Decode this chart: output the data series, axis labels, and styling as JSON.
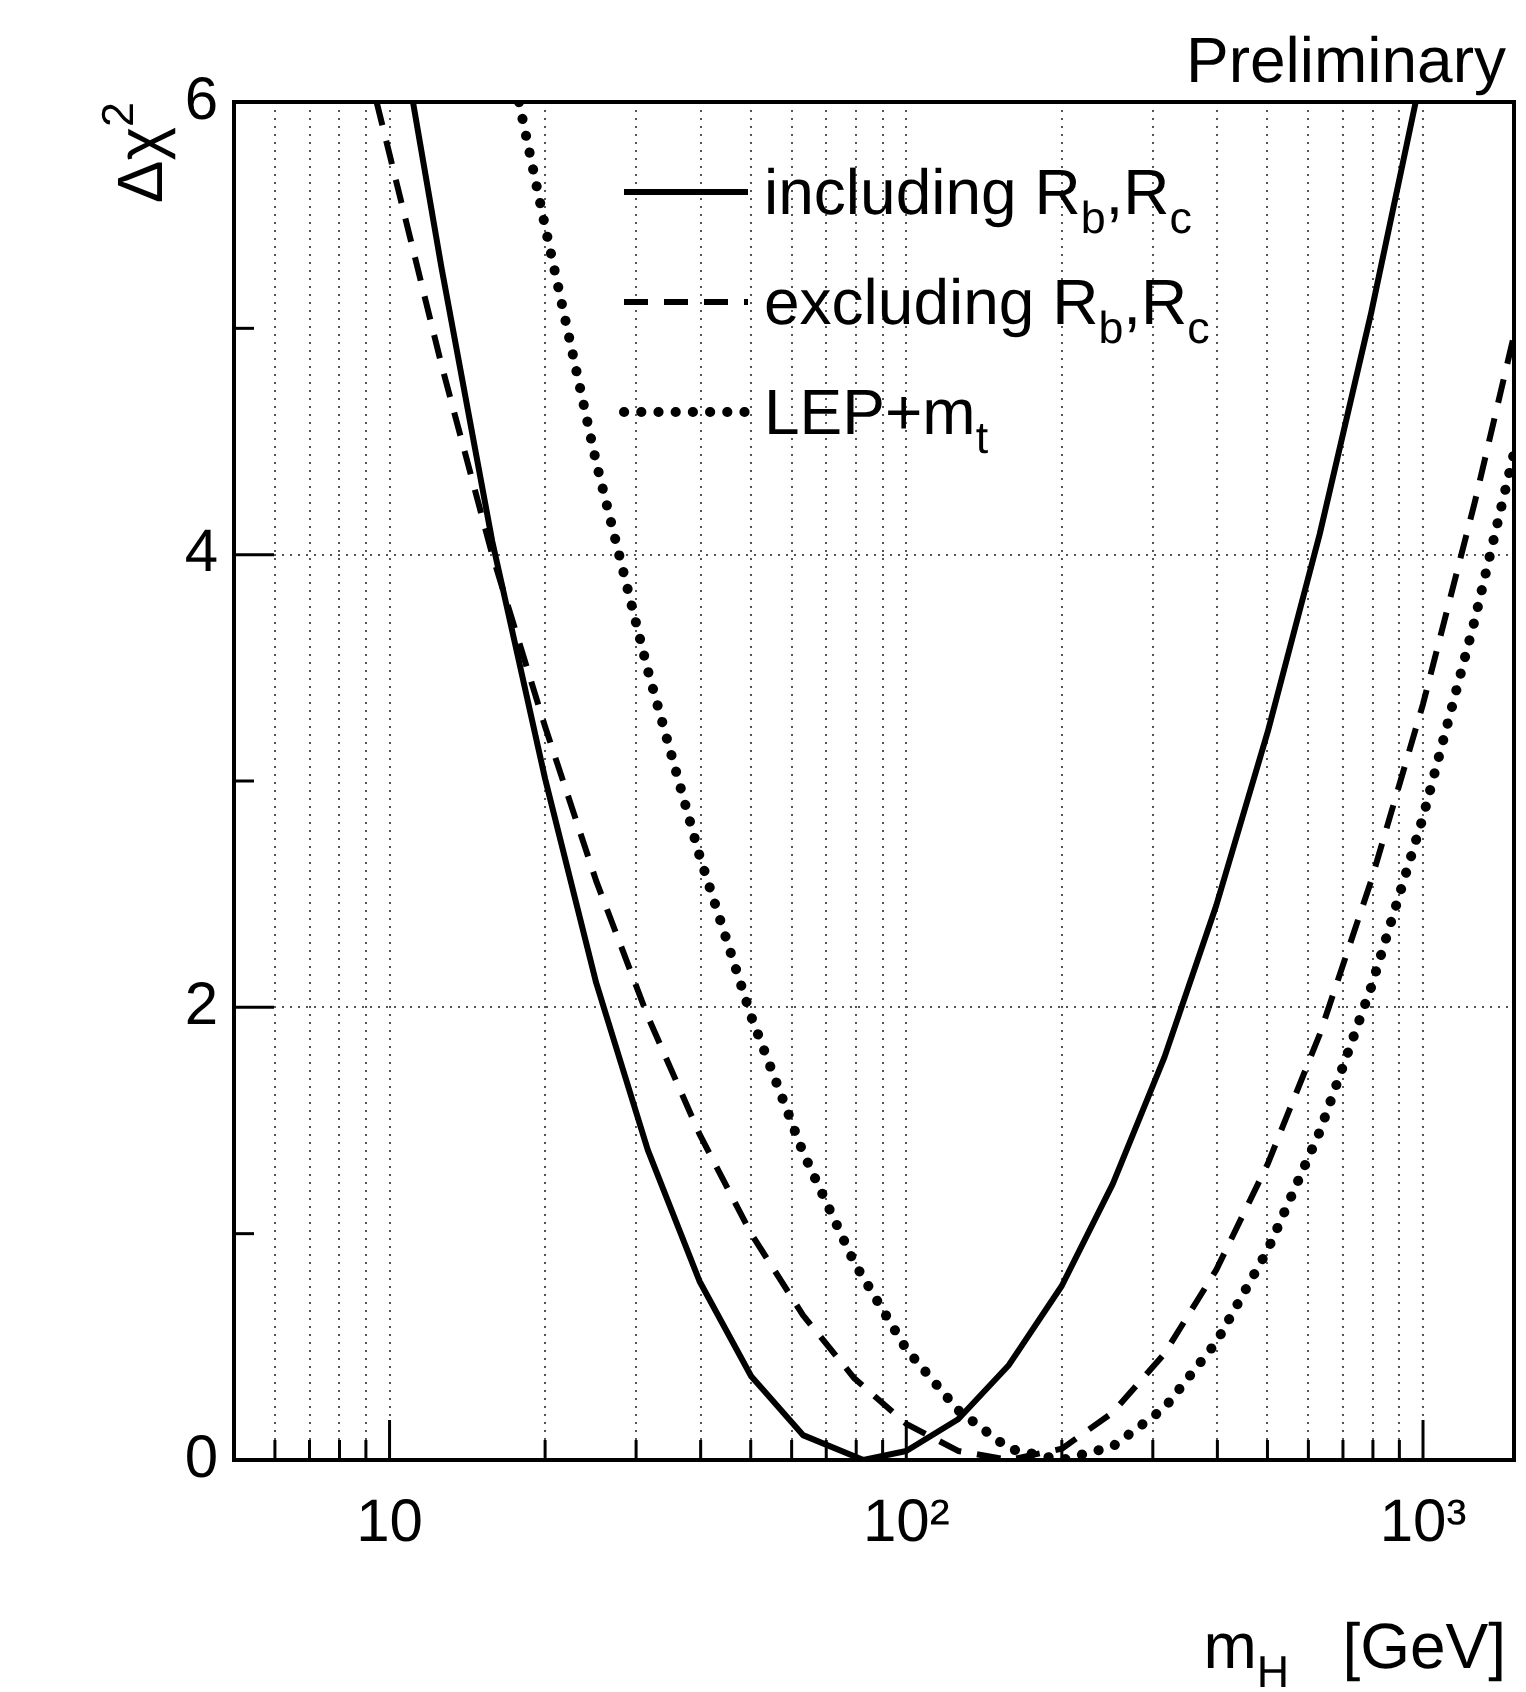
{
  "chart_data": {
    "type": "line",
    "title": "Preliminary",
    "xlabel": "m$_{H}$   [GeV]",
    "ylabel": "Δχ$^{2}$",
    "log": "x",
    "grid": true,
    "legend": "top right",
    "marker": "none",
    "xlim": [
      5,
      1500
    ],
    "xticks": [
      {
        "value": 6,
        "label": null
      },
      {
        "value": 7,
        "label": null
      },
      {
        "value": 8,
        "label": null
      },
      {
        "value": 9,
        "label": null
      },
      10,
      {
        "value": 20,
        "label": null
      },
      {
        "value": 30,
        "label": null
      },
      {
        "value": 40,
        "label": null
      },
      {
        "value": 50,
        "label": null
      },
      {
        "value": 60,
        "label": null
      },
      {
        "value": 70,
        "label": null
      },
      {
        "value": 80,
        "label": null
      },
      {
        "value": 90,
        "label": null
      },
      {
        "value": 100,
        "label": "10²"
      },
      {
        "value": 200,
        "label": null
      },
      {
        "value": 300,
        "label": null
      },
      {
        "value": 400,
        "label": null
      },
      {
        "value": 500,
        "label": null
      },
      {
        "value": 600,
        "label": null
      },
      {
        "value": 700,
        "label": null
      },
      {
        "value": 800,
        "label": null
      },
      {
        "value": 900,
        "label": null
      },
      {
        "value": 1000,
        "label": "10³"
      }
    ],
    "ylim": [
      0,
      6
    ],
    "yticks": [
      0,
      {
        "value": 1,
        "label": null
      },
      2,
      {
        "value": 3,
        "label": null
      },
      4,
      {
        "value": 5,
        "label": null
      },
      6
    ],
    "series": [
      {
        "name": "including R$_{b}$,R$_{c}$",
        "color": "#000000",
        "line_style": "solid",
        "x": [
          11.1,
          12.6,
          15.8,
          20,
          25.1,
          31.6,
          39.8,
          50.1,
          63.1,
          82.6,
          100,
          126,
          158,
          200,
          251,
          316,
          398,
          501,
          631,
          794,
          968
        ],
        "values": [
          6,
          5.27,
          4.06,
          3.01,
          2.11,
          1.37,
          0.79,
          0.37,
          0.11,
          0,
          0.04,
          0.18,
          0.42,
          0.77,
          1.22,
          1.78,
          2.45,
          3.22,
          4.09,
          5.07,
          6
        ]
      },
      {
        "name": "excluding R$_{b}$,R$_{c}$",
        "color": "#000000",
        "line_style": "dashed",
        "x": [
          9.44,
          12.6,
          15.8,
          20,
          25.1,
          31.6,
          39.8,
          50.1,
          63.1,
          79.4,
          100,
          126,
          158,
          200,
          251,
          316,
          398,
          501,
          631,
          794,
          1000,
          1259,
          1500
        ],
        "values": [
          6,
          4.84,
          4,
          3.24,
          2.56,
          1.96,
          1.44,
          1,
          0.64,
          0.36,
          0.16,
          0.04,
          0,
          0.05,
          0.21,
          0.47,
          0.84,
          1.31,
          1.88,
          2.56,
          3.34,
          4.23,
          4.97
        ]
      },
      {
        "name": "LEP+m$_{t}$",
        "color": "#000000",
        "line_style": "dotted",
        "x": [
          17.8,
          20,
          25.1,
          31.6,
          39.8,
          50.1,
          63.1,
          79.4,
          100,
          126,
          158,
          200,
          251,
          316,
          398,
          501,
          631,
          794,
          1000,
          1259,
          1500
        ],
        "values": [
          6,
          5.45,
          4.41,
          3.49,
          2.67,
          1.96,
          1.36,
          0.87,
          0.49,
          0.22,
          0.05,
          0,
          0.06,
          0.23,
          0.52,
          0.93,
          1.45,
          2.09,
          2.84,
          3.71,
          4.45
        ]
      }
    ]
  }
}
